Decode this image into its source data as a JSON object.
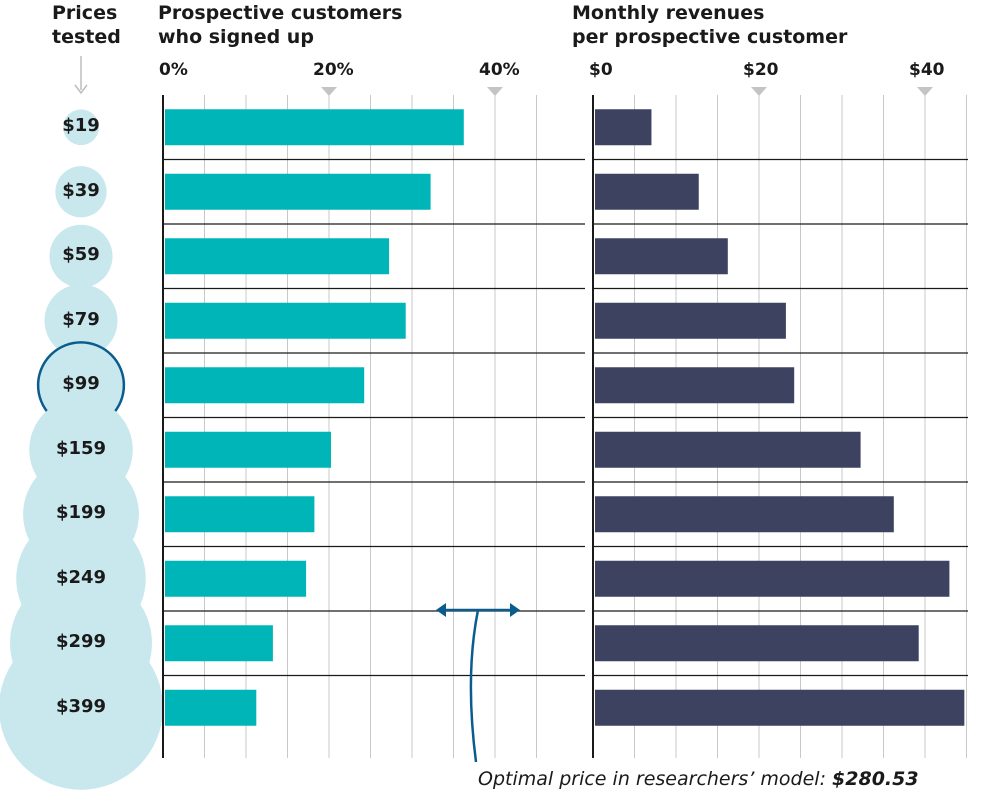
{
  "headers": {
    "prices": [
      "Prices",
      "tested"
    ],
    "signup": [
      "Prospective customers",
      "who signed up"
    ],
    "revenue": [
      "Monthly revenues",
      "per prospective customer"
    ]
  },
  "footnote": {
    "label": "Optimal price in researchers’ model:",
    "value": "$280.53"
  },
  "colors": {
    "signup_bar": "#00b5b8",
    "revenue_bar": "#3c4260",
    "circle_fill": "#c8e8ee",
    "highlight": "#0a5c8f",
    "grid": "#c8c8c8",
    "rowline": "#1a1a1a"
  },
  "chart_data": [
    {
      "type": "bar",
      "orientation": "horizontal",
      "title": "Prospective customers who signed up",
      "categories": [
        "$19",
        "$39",
        "$59",
        "$79",
        "$99",
        "$159",
        "$199",
        "$249",
        "$299",
        "$399"
      ],
      "values": [
        36,
        32,
        27,
        29,
        24,
        20,
        18,
        17,
        13,
        11
      ],
      "unit": "%",
      "xlim": [
        0,
        46
      ],
      "ticks": [
        0,
        20,
        40
      ],
      "tick_labels": [
        "0%",
        "20%",
        "40%"
      ],
      "grid": true
    },
    {
      "type": "bar",
      "orientation": "horizontal",
      "title": "Monthly revenues per prospective customer",
      "categories": [
        "$19",
        "$39",
        "$59",
        "$79",
        "$99",
        "$159",
        "$199",
        "$249",
        "$299",
        "$399"
      ],
      "values": [
        6.8,
        12.5,
        16,
        23,
        24,
        32,
        36,
        42.7,
        39,
        44.5
      ],
      "unit": "$",
      "xlim": [
        0,
        46
      ],
      "ticks": [
        0,
        20,
        40
      ],
      "tick_labels": [
        "$0",
        "$20",
        "$40"
      ],
      "grid": true
    }
  ],
  "price_circles": {
    "prices": [
      19,
      39,
      59,
      79,
      99,
      159,
      199,
      249,
      299,
      399
    ],
    "highlighted": "$99"
  },
  "optimal_price": 280.53
}
